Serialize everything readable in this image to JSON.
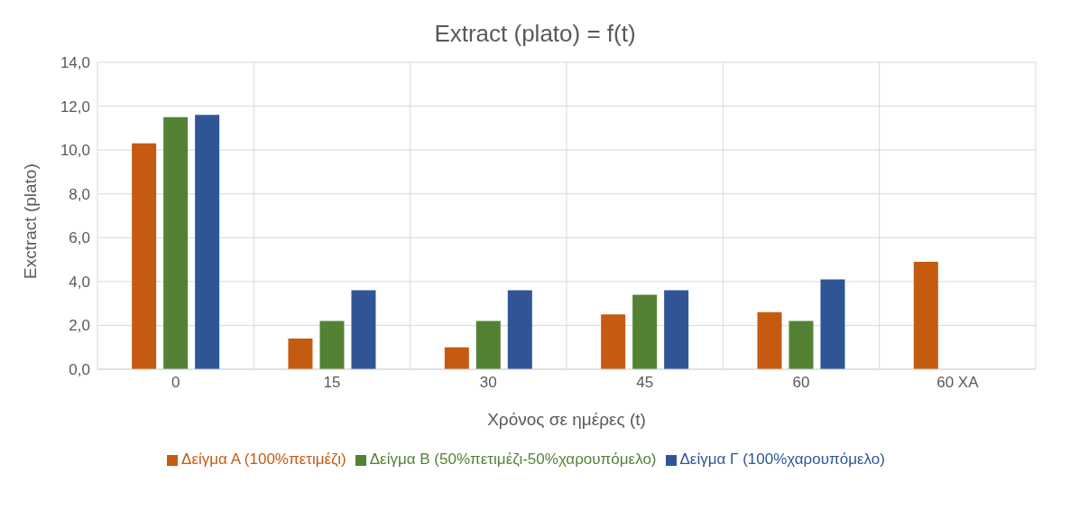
{
  "chart_data": {
    "type": "bar",
    "title": "Extract (plato) = f(t)",
    "xlabel": "Χρόνος σε ημέρες (t)",
    "ylabel": "Exctract (plato)",
    "categories": [
      "0",
      "15",
      "30",
      "45",
      "60",
      "60 ΧΑ"
    ],
    "series": [
      {
        "name": "Δείγμα Α (100%πετιμέζι)",
        "color": "#c55a11",
        "values": [
          10.3,
          1.4,
          1.0,
          2.5,
          2.6,
          4.9
        ]
      },
      {
        "name": "Δείγμα Β (50%πετιμέζι-50%χαρουπόμελο)",
        "color": "#548235",
        "values": [
          11.5,
          2.2,
          2.2,
          3.4,
          2.2,
          null
        ]
      },
      {
        "name": "Δείγμα Γ (100%χαρουπόμελο)",
        "color": "#2f5597",
        "values": [
          11.6,
          3.6,
          3.6,
          3.6,
          4.1,
          null
        ]
      }
    ],
    "ylim": [
      0,
      14
    ],
    "yticks": [
      {
        "value": 0,
        "label": "0,0"
      },
      {
        "value": 2,
        "label": "2,0"
      },
      {
        "value": 4,
        "label": "4,0"
      },
      {
        "value": 6,
        "label": "6,0"
      },
      {
        "value": 8,
        "label": "8,0"
      },
      {
        "value": 10,
        "label": "10,0"
      },
      {
        "value": 12,
        "label": "12,0"
      },
      {
        "value": 14,
        "label": "14,0"
      }
    ],
    "grid": true,
    "legend": "bottom"
  }
}
